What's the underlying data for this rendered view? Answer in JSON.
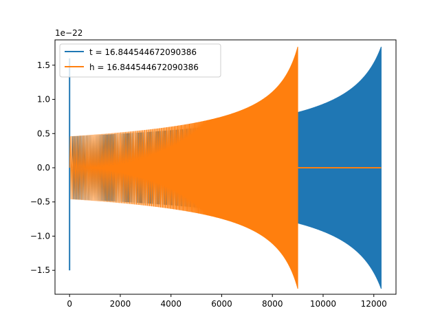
{
  "chart_data": {
    "type": "line",
    "title": "",
    "xlabel": "",
    "ylabel": "",
    "y_offset_text": "1e−22",
    "xlim": [
      -575,
      12875
    ],
    "ylim": [
      -1.85,
      1.87
    ],
    "x_ticks": [
      0,
      2000,
      4000,
      6000,
      8000,
      10000,
      12000
    ],
    "y_ticks": [
      -1.5,
      -1.0,
      -0.5,
      0.0,
      0.5,
      1.0,
      1.5
    ],
    "x_tick_labels": [
      "0",
      "2000",
      "4000",
      "6000",
      "8000",
      "10000",
      "12000"
    ],
    "y_tick_labels": [
      "−1.5",
      "−1.0",
      "−0.5",
      "0.0",
      "0.5",
      "1.0",
      "1.5"
    ],
    "grid": false,
    "legend_position": "top-left",
    "series": [
      {
        "name": "t = 16.844544672090386",
        "color": "#1f77b4",
        "start_spike": {
          "x": 0,
          "min": -1.5,
          "max": 1.6
        },
        "chirp": {
          "x_start": 100,
          "x_end": 12290,
          "amp_start": 0.46,
          "amp_end": 1.77
        }
      },
      {
        "name": "h = 16.844544672090386",
        "color": "#ff7f0e",
        "chirp": {
          "x_start": 0,
          "x_end": 9000,
          "amp_start": 0.46,
          "amp_end": 1.77
        },
        "flat": {
          "x_start": 9000,
          "x_end": 12290,
          "value": 0.0
        }
      }
    ]
  }
}
